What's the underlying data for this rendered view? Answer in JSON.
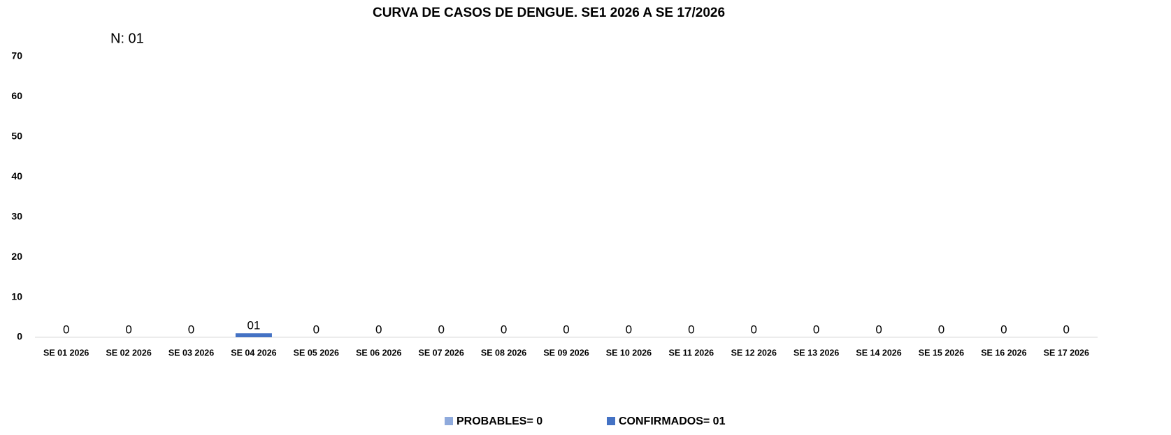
{
  "chart_data": {
    "type": "stacked_bar",
    "title": "CURVA DE CASOS DE DENGUE. SE1 2026 A SE 17/2026",
    "annotation": "N: 01",
    "categories": [
      "SE 01 2026",
      "SE 02 2026",
      "SE 03 2026",
      "SE 04 2026",
      "SE 05 2026",
      "SE 06 2026",
      "SE 07 2026",
      "SE 08 2026",
      "SE 09 2026",
      "SE 10 2026",
      "SE 11 2026",
      "SE 12 2026",
      "SE 13 2026",
      "SE 14 2026",
      "SE 15 2026",
      "SE 16 2026",
      "SE 17 2026"
    ],
    "series": [
      {
        "name": "PROBABLES= 0",
        "color": "#8faadc",
        "values": [
          0,
          0,
          0,
          0,
          0,
          0,
          0,
          0,
          0,
          0,
          0,
          0,
          0,
          0,
          0,
          0,
          0
        ]
      },
      {
        "name": "CONFIRMADOS= 01",
        "color": "#4472c4",
        "values": [
          0,
          0,
          0,
          1,
          0,
          0,
          0,
          0,
          0,
          0,
          0,
          0,
          0,
          0,
          0,
          0,
          0
        ],
        "value_labels": [
          "0",
          "0",
          "0",
          "01",
          "0",
          "0",
          "0",
          "0",
          "0",
          "0",
          "0",
          "0",
          "0",
          "0",
          "0",
          "0",
          "0"
        ]
      }
    ],
    "ylim": [
      0,
      70
    ],
    "yticks": [
      0,
      10,
      20,
      30,
      40,
      50,
      60,
      70
    ],
    "grid": false,
    "legend": "bottom"
  }
}
